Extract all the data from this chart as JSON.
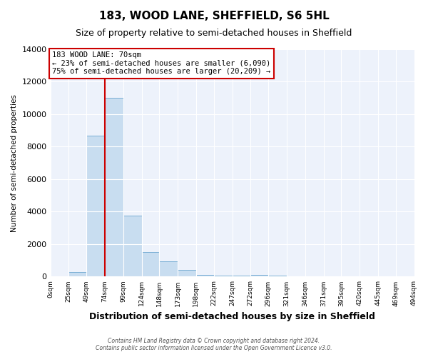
{
  "title": "183, WOOD LANE, SHEFFIELD, S6 5HL",
  "subtitle": "Size of property relative to semi-detached houses in Sheffield",
  "xlabel": "Distribution of semi-detached houses by size in Sheffield",
  "ylabel": "Number of semi-detached properties",
  "bar_color": "#c8ddf0",
  "bar_edge_color": "#7aafd4",
  "bin_edges": [
    0,
    25,
    49,
    74,
    99,
    124,
    148,
    173,
    198,
    222,
    247,
    272,
    296,
    321,
    346,
    371,
    395,
    420,
    445,
    469,
    494
  ],
  "bin_labels": [
    "0sqm",
    "25sqm",
    "49sqm",
    "74sqm",
    "99sqm",
    "124sqm",
    "148sqm",
    "173sqm",
    "198sqm",
    "222sqm",
    "247sqm",
    "272sqm",
    "296sqm",
    "321sqm",
    "346sqm",
    "371sqm",
    "395sqm",
    "420sqm",
    "445sqm",
    "469sqm",
    "494sqm"
  ],
  "bar_heights": [
    0,
    300,
    8700,
    11000,
    3750,
    1500,
    950,
    400,
    100,
    50,
    50,
    100,
    50,
    0,
    0,
    0,
    0,
    0,
    0,
    0
  ],
  "vline_x": 74,
  "vline_color": "#cc0000",
  "ylim": [
    0,
    14000
  ],
  "yticks": [
    0,
    2000,
    4000,
    6000,
    8000,
    10000,
    12000,
    14000
  ],
  "annotation_title": "183 WOOD LANE: 70sqm",
  "annotation_line1": "← 23% of semi-detached houses are smaller (6,090)",
  "annotation_line2": "75% of semi-detached houses are larger (20,209) →",
  "annotation_box_color": "#ffffff",
  "annotation_box_edge": "#cc0000",
  "footer1": "Contains HM Land Registry data © Crown copyright and database right 2024.",
  "footer2": "Contains public sector information licensed under the Open Government Licence v3.0.",
  "background_color": "#ffffff",
  "plot_background_color": "#edf2fb"
}
